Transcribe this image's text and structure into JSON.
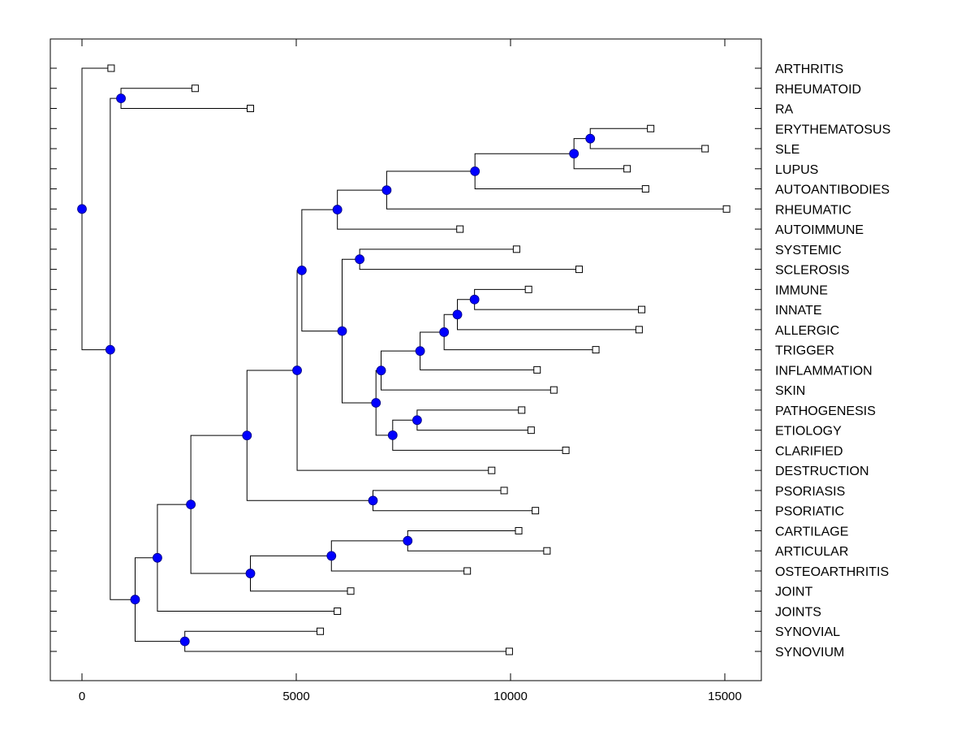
{
  "chart_data": {
    "type": "dendrogram",
    "title": "",
    "xlabel": "",
    "ylabel": "",
    "xlim": [
      -750,
      15850
    ],
    "xticks": [
      0,
      5000,
      10000,
      15000
    ],
    "xtick_labels": [
      "0",
      "5000",
      "10000",
      "15000"
    ],
    "grid": false,
    "colors": {
      "internal_node": "#0000ff",
      "leaf_node": "#ffffff",
      "line": "#000000"
    },
    "leaves": [
      {
        "label": "ARTHRITIS",
        "x": 680
      },
      {
        "label": "RHEUMATOID",
        "x": 2640
      },
      {
        "label": "RA",
        "x": 3930
      },
      {
        "label": "ERYTHEMATOSUS",
        "x": 13270
      },
      {
        "label": "SLE",
        "x": 14540
      },
      {
        "label": "LUPUS",
        "x": 12720
      },
      {
        "label": "AUTOANTIBODIES",
        "x": 13150
      },
      {
        "label": "RHEUMATIC",
        "x": 15040
      },
      {
        "label": "AUTOIMMUNE",
        "x": 8820
      },
      {
        "label": "SYSTEMIC",
        "x": 10140
      },
      {
        "label": "SCLEROSIS",
        "x": 11600
      },
      {
        "label": "IMMUNE",
        "x": 10420
      },
      {
        "label": "INNATE",
        "x": 13060
      },
      {
        "label": "ALLERGIC",
        "x": 13000
      },
      {
        "label": "TRIGGER",
        "x": 11990
      },
      {
        "label": "INFLAMMATION",
        "x": 10620
      },
      {
        "label": "SKIN",
        "x": 11010
      },
      {
        "label": "PATHOGENESIS",
        "x": 10260
      },
      {
        "label": "ETIOLOGY",
        "x": 10480
      },
      {
        "label": "CLARIFIED",
        "x": 11290
      },
      {
        "label": "DESTRUCTION",
        "x": 9560
      },
      {
        "label": "PSORIASIS",
        "x": 9850
      },
      {
        "label": "PSORIATIC",
        "x": 10580
      },
      {
        "label": "CARTILAGE",
        "x": 10190
      },
      {
        "label": "ARTICULAR",
        "x": 10850
      },
      {
        "label": "OSTEOARTHRITIS",
        "x": 8990
      },
      {
        "label": "JOINT",
        "x": 6270
      },
      {
        "label": "JOINTS",
        "x": 5960
      },
      {
        "label": "SYNOVIAL",
        "x": 5560
      },
      {
        "label": "SYNOVIUM",
        "x": 9970
      }
    ],
    "tree": {
      "id": "root",
      "x": 0,
      "children": [
        {
          "leaf": 0
        },
        {
          "id": "n_ra",
          "x": 910,
          "children": [
            {
              "leaf": 1
            },
            {
              "leaf": 2
            }
          ]
        },
        {
          "id": "n_main",
          "x": 660,
          "children": [
            {
              "id": "n_upper_stub",
              "x": 660,
              "children": []
            },
            {
              "id": "n_bottom",
              "x": 1240,
              "children": [
                {
                  "id": "n_mid",
                  "x": 1760,
                  "children": [
                    {
                      "id": "n_big",
                      "x": 2540,
                      "children": [
                        {
                          "id": "n_b1",
                          "x": 3850,
                          "children": [
                            {
                              "id": "n_b2",
                              "x": 5020,
                              "children": [
                                {
                                  "id": "n_b3",
                                  "x": 5130,
                                  "children": [
                                    {
                                      "id": "n_b4",
                                      "x": 5960,
                                      "children": [
                                        {
                                          "id": "n_b5",
                                          "x": 7110,
                                          "children": [
                                            {
                                              "id": "n_b6",
                                              "x": 9170,
                                              "children": [
                                                {
                                                  "id": "n_b7",
                                                  "x": 11480,
                                                  "children": [
                                                    {
                                                      "id": "n_b8",
                                                      "x": 11860,
                                                      "children": [
                                                        {
                                                          "leaf": 3
                                                        },
                                                        {
                                                          "leaf": 4
                                                        }
                                                      ]
                                                    },
                                                    {
                                                      "leaf": 5
                                                    }
                                                  ]
                                                },
                                                {
                                                  "leaf": 6
                                                }
                                              ]
                                            },
                                            {
                                              "leaf": 7
                                            }
                                          ]
                                        },
                                        {
                                          "leaf": 8
                                        }
                                      ]
                                    },
                                    {
                                      "id": "n_c1",
                                      "x": 6070,
                                      "children": [
                                        {
                                          "id": "n_c2",
                                          "x": 6480,
                                          "children": [
                                            {
                                              "leaf": 9
                                            },
                                            {
                                              "leaf": 10
                                            }
                                          ]
                                        },
                                        {
                                          "id": "n_c3",
                                          "x": 6860,
                                          "children": [
                                            {
                                              "id": "n_c4",
                                              "x": 6980,
                                              "children": [
                                                {
                                                  "id": "n_c5",
                                                  "x": 7890,
                                                  "children": [
                                                    {
                                                      "id": "n_c6",
                                                      "x": 8450,
                                                      "children": [
                                                        {
                                                          "id": "n_c7",
                                                          "x": 8760,
                                                          "children": [
                                                            {
                                                              "id": "n_c8",
                                                              "x": 9160,
                                                              "children": [
                                                                {
                                                                  "leaf": 11
                                                                },
                                                                {
                                                                  "leaf": 12
                                                                }
                                                              ]
                                                            },
                                                            {
                                                              "leaf": 13
                                                            }
                                                          ]
                                                        },
                                                        {
                                                          "leaf": 14
                                                        }
                                                      ]
                                                    },
                                                    {
                                                      "leaf": 15
                                                    }
                                                  ]
                                                },
                                                {
                                                  "leaf": 16
                                                }
                                              ]
                                            },
                                            {
                                              "id": "n_c9",
                                              "x": 7250,
                                              "children": [
                                                {
                                                  "id": "n_c10",
                                                  "x": 7820,
                                                  "children": [
                                                    {
                                                      "leaf": 17
                                                    },
                                                    {
                                                      "leaf": 18
                                                    }
                                                  ]
                                                },
                                                {
                                                  "leaf": 19
                                                }
                                              ]
                                            }
                                          ]
                                        }
                                      ]
                                    }
                                  ]
                                },
                                {
                                  "leaf": 20
                                }
                              ]
                            },
                            {
                              "id": "n_psor",
                              "x": 6790,
                              "children": [
                                {
                                  "leaf": 21
                                },
                                {
                                  "leaf": 22
                                }
                              ]
                            }
                          ]
                        },
                        {
                          "id": "n_osteo",
                          "x": 3930,
                          "children": [
                            {
                              "id": "n_o1",
                              "x": 5820,
                              "children": [
                                {
                                  "id": "n_o2",
                                  "x": 7600,
                                  "children": [
                                    {
                                      "leaf": 23
                                    },
                                    {
                                      "leaf": 24
                                    }
                                  ]
                                },
                                {
                                  "leaf": 25
                                }
                              ]
                            },
                            {
                              "leaf": 26
                            }
                          ]
                        }
                      ]
                    },
                    {
                      "leaf": 27
                    }
                  ]
                },
                {
                  "id": "n_syn",
                  "x": 2400,
                  "children": [
                    {
                      "leaf": 28
                    },
                    {
                      "leaf": 29
                    }
                  ]
                }
              ]
            }
          ]
        }
      ]
    }
  }
}
